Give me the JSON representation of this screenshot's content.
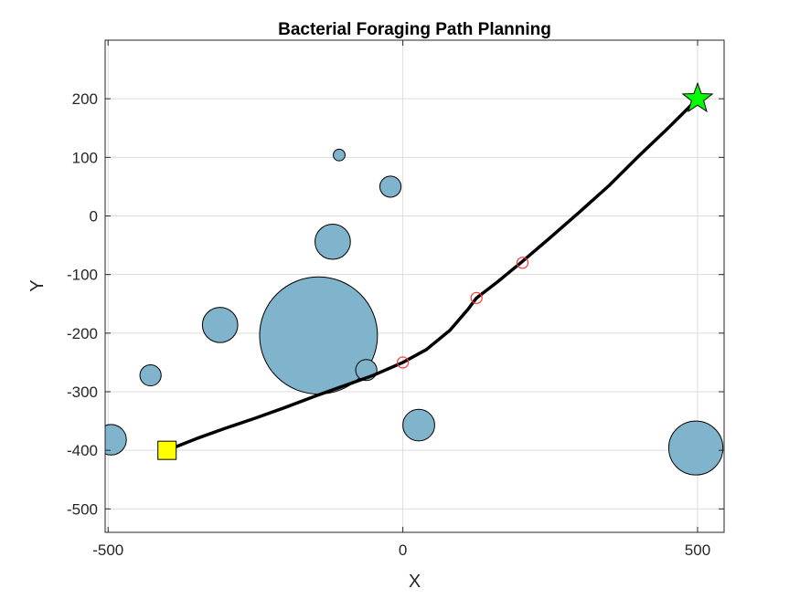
{
  "chart_data": {
    "type": "scatter",
    "title": "Bacterial Foraging Path Planning",
    "xlabel": "X",
    "ylabel": "Y",
    "xlim": [
      -505,
      545
    ],
    "ylim": [
      -540,
      300
    ],
    "xticks": [
      -500,
      0,
      500
    ],
    "yticks": [
      -500,
      -400,
      -300,
      -200,
      -100,
      0,
      100,
      200
    ],
    "grid": true,
    "colors": {
      "obstacle": "#80b3cc",
      "path": "#000000",
      "start": "#ffff00",
      "goal": "#00ff00",
      "waypoint": "#ff3333"
    },
    "obstacles": [
      {
        "x": -495,
        "y": -382,
        "r": 26
      },
      {
        "x": -428,
        "y": -272,
        "r": 18
      },
      {
        "x": -310,
        "y": -186,
        "r": 30
      },
      {
        "x": -143,
        "y": -204,
        "r": 100
      },
      {
        "x": -119,
        "y": -44,
        "r": 30
      },
      {
        "x": -108,
        "y": 104,
        "r": 10
      },
      {
        "x": -21,
        "y": 50,
        "r": 18
      },
      {
        "x": -62,
        "y": -263,
        "r": 18
      },
      {
        "x": 27,
        "y": -357,
        "r": 27
      },
      {
        "x": 497,
        "y": -396,
        "r": 46
      }
    ],
    "path": [
      [
        -400,
        -400
      ],
      [
        -350,
        -380
      ],
      [
        -300,
        -362
      ],
      [
        -250,
        -345
      ],
      [
        -200,
        -327
      ],
      [
        -150,
        -308
      ],
      [
        -100,
        -290
      ],
      [
        -50,
        -272
      ],
      [
        0,
        -250
      ],
      [
        40,
        -228
      ],
      [
        80,
        -195
      ],
      [
        110,
        -160
      ],
      [
        125,
        -140
      ],
      [
        160,
        -113
      ],
      [
        200,
        -80
      ],
      [
        250,
        -37
      ],
      [
        300,
        7
      ],
      [
        350,
        52
      ],
      [
        400,
        102
      ],
      [
        450,
        150
      ],
      [
        500,
        200
      ]
    ],
    "waypoints": [
      [
        0,
        -250
      ],
      [
        125,
        -140
      ],
      [
        203,
        -80
      ]
    ],
    "start": {
      "x": -400,
      "y": -400
    },
    "goal": {
      "x": 500,
      "y": 200
    }
  }
}
